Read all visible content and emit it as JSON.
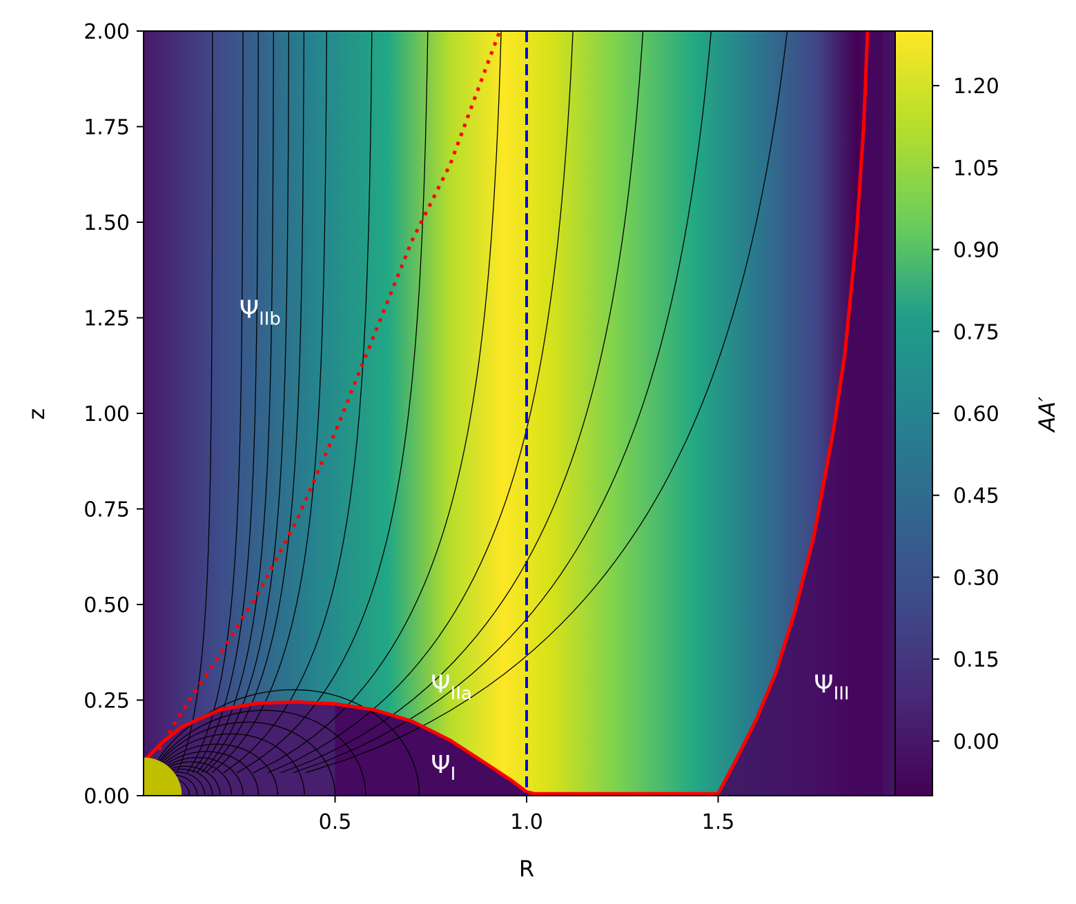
{
  "chart_data": {
    "type": "heatmap",
    "title": "",
    "xlabel": "R",
    "ylabel": "z",
    "xlim": [
      0,
      2
    ],
    "ylim": [
      0,
      2
    ],
    "x_ticks": [
      {
        "value": 0.5,
        "label": "0.5"
      },
      {
        "value": 1.0,
        "label": "1.0"
      },
      {
        "value": 1.5,
        "label": "1.5"
      }
    ],
    "y_ticks": [
      {
        "value": 0.0,
        "label": "0.00"
      },
      {
        "value": 0.25,
        "label": "0.25"
      },
      {
        "value": 0.5,
        "label": "0.50"
      },
      {
        "value": 0.75,
        "label": "0.75"
      },
      {
        "value": 1.0,
        "label": "1.00"
      },
      {
        "value": 1.25,
        "label": "1.25"
      },
      {
        "value": 1.5,
        "label": "1.50"
      },
      {
        "value": 1.75,
        "label": "1.75"
      },
      {
        "value": 2.0,
        "label": "2.00"
      }
    ],
    "colorbar": {
      "label": "AA′",
      "range": [
        -0.1,
        1.3
      ],
      "colormap": "viridis",
      "ticks": [
        {
          "value": 0.0,
          "label": "0.00"
        },
        {
          "value": 0.15,
          "label": "0.15"
        },
        {
          "value": 0.3,
          "label": "0.30"
        },
        {
          "value": 0.45,
          "label": "0.45"
        },
        {
          "value": 0.6,
          "label": "0.60"
        },
        {
          "value": 0.75,
          "label": "0.75"
        },
        {
          "value": 0.9,
          "label": "0.90"
        },
        {
          "value": 1.05,
          "label": "1.05"
        },
        {
          "value": 1.2,
          "label": "1.20"
        }
      ]
    },
    "separatrix": {
      "color": "#ff0000",
      "closed_branch": [
        [
          0.0,
          0.09
        ],
        [
          0.05,
          0.14
        ],
        [
          0.1,
          0.18
        ],
        [
          0.2,
          0.225
        ],
        [
          0.3,
          0.242
        ],
        [
          0.4,
          0.245
        ],
        [
          0.5,
          0.24
        ],
        [
          0.6,
          0.225
        ],
        [
          0.7,
          0.195
        ],
        [
          0.8,
          0.145
        ],
        [
          0.9,
          0.08
        ],
        [
          0.96,
          0.04
        ],
        [
          1.0,
          0.01
        ],
        [
          1.02,
          0.005
        ],
        [
          1.5,
          0.005
        ]
      ],
      "open_branch": [
        [
          1.5,
          0.005
        ],
        [
          1.55,
          0.1
        ],
        [
          1.6,
          0.2
        ],
        [
          1.65,
          0.32
        ],
        [
          1.7,
          0.48
        ],
        [
          1.75,
          0.68
        ],
        [
          1.8,
          0.95
        ],
        [
          1.83,
          1.15
        ],
        [
          1.86,
          1.45
        ],
        [
          1.88,
          1.75
        ],
        [
          1.89,
          2.0
        ]
      ]
    },
    "dotted_curve": {
      "color": "#ff0000",
      "points": [
        [
          0.04,
          0.12
        ],
        [
          0.1,
          0.22
        ],
        [
          0.2,
          0.37
        ],
        [
          0.3,
          0.53
        ],
        [
          0.4,
          0.72
        ],
        [
          0.5,
          0.95
        ],
        [
          0.6,
          1.2
        ],
        [
          0.7,
          1.45
        ],
        [
          0.8,
          1.65
        ],
        [
          0.9,
          1.92
        ],
        [
          0.93,
          2.0
        ]
      ]
    },
    "vertical_line": {
      "x": 1.0,
      "color": "#0000ff"
    },
    "open_field_lines": [
      0.18,
      0.26,
      0.3,
      0.34,
      0.38,
      0.42,
      0.48,
      0.6,
      0.75,
      0.95,
      1.15,
      1.35,
      1.55,
      1.78
    ],
    "closed_field_line_radii": [
      0.1,
      0.12,
      0.14,
      0.16,
      0.18,
      0.2,
      0.23,
      0.26,
      0.3,
      0.35,
      0.42,
      0.5,
      0.58,
      0.72
    ],
    "star": {
      "radius": 0.1,
      "color": "#bfbf00"
    },
    "region_labels": [
      {
        "main": "Ψ",
        "sub": "IIb",
        "x": 0.25,
        "z": 1.25
      },
      {
        "main": "Ψ",
        "sub": "IIa",
        "x": 0.75,
        "z": 0.27
      },
      {
        "main": "Ψ",
        "sub": "I",
        "x": 0.75,
        "z": 0.06
      },
      {
        "main": "Ψ",
        "sub": "III",
        "x": 1.75,
        "z": 0.27
      }
    ]
  }
}
